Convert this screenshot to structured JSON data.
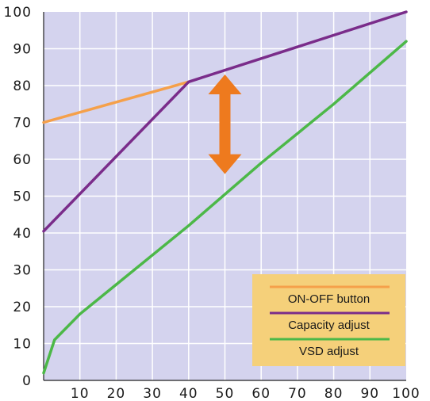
{
  "chart_data": {
    "type": "line",
    "title": "",
    "xlabel": "",
    "ylabel": "",
    "xlim": [
      0,
      100
    ],
    "ylim": [
      0,
      100
    ],
    "x_ticks": [
      10,
      20,
      30,
      40,
      50,
      60,
      70,
      80,
      90,
      100
    ],
    "y_ticks": [
      0,
      10,
      20,
      30,
      40,
      50,
      60,
      70,
      80,
      90,
      100
    ],
    "grid": true,
    "legend_position": "bottom-right",
    "series": [
      {
        "name": "ON-OFF button",
        "color": "#F5A04A",
        "points": [
          [
            0,
            70
          ],
          [
            40,
            81
          ]
        ]
      },
      {
        "name": "Capacity adjust",
        "color": "#7A2C8A",
        "points": [
          [
            0,
            40.5
          ],
          [
            40,
            81
          ],
          [
            100,
            100
          ]
        ]
      },
      {
        "name": "VSD adjust",
        "color": "#4CB848",
        "points": [
          [
            0,
            2
          ],
          [
            3,
            11
          ],
          [
            10,
            18
          ],
          [
            20,
            26
          ],
          [
            40,
            42
          ],
          [
            60,
            59
          ],
          [
            80,
            75
          ],
          [
            100,
            92
          ]
        ]
      }
    ],
    "annotations": [
      {
        "type": "double-arrow",
        "color": "#EE7A1E",
        "x": 50,
        "y_from": 56,
        "y_to": 83
      }
    ],
    "colors": {
      "plot_background": "#D4D3EE",
      "grid": "#ffffff",
      "legend_background": "#F5D07A",
      "axis_text": "#1a1a1a"
    }
  }
}
